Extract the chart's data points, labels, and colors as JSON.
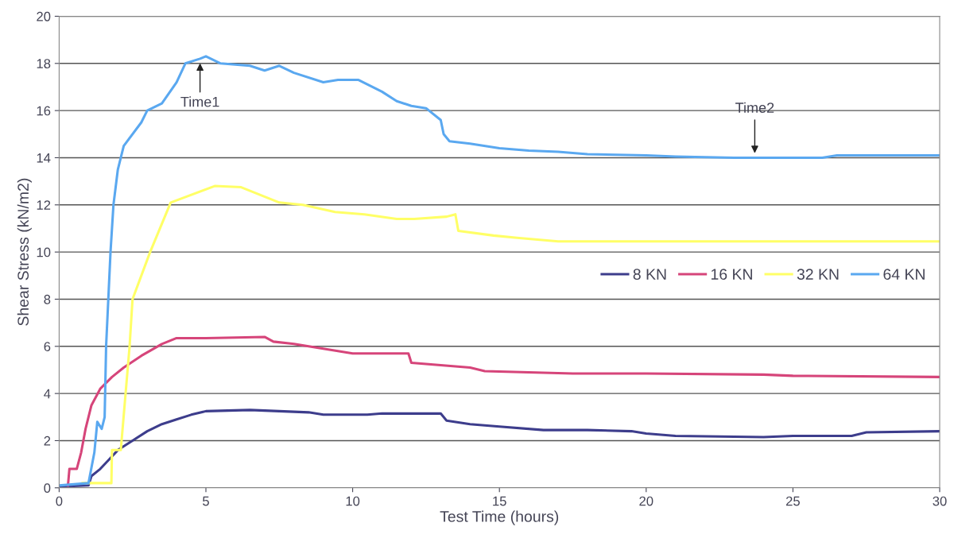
{
  "chart_data": {
    "type": "line",
    "xlabel": "Test Time (hours)",
    "ylabel": "Shear Stress (kN/m2)",
    "xlim": [
      0,
      30
    ],
    "xticks": [
      0,
      5,
      10,
      15,
      20,
      25,
      30
    ],
    "ylim": [
      0,
      20
    ],
    "yticks": [
      0,
      2,
      4,
      6,
      8,
      10,
      12,
      14,
      16,
      18,
      20
    ],
    "grid": "y",
    "legend": "right",
    "marker": "none",
    "line_style": "solid",
    "annotations": [
      {
        "text": "Time1",
        "x": 4.8,
        "y": 18.1
      },
      {
        "text": "Time2",
        "x": 23.7,
        "y": 14.1
      }
    ],
    "series": [
      {
        "name": "8 KN",
        "color": "#3d3d8c",
        "x": [
          0,
          1.0,
          1.1,
          1.4,
          1.7,
          2.0,
          2.5,
          3.0,
          3.5,
          4,
          4.5,
          5,
          6.5,
          7.5,
          8.5,
          9,
          10.5,
          11,
          13.0,
          13.2,
          14,
          15,
          16.5,
          18,
          19.5,
          20,
          21,
          24,
          25,
          27,
          27.5,
          30
        ],
        "values": [
          0.05,
          0.1,
          0.5,
          0.8,
          1.2,
          1.6,
          2.0,
          2.4,
          2.7,
          2.9,
          3.1,
          3.25,
          3.3,
          3.25,
          3.2,
          3.1,
          3.1,
          3.15,
          3.15,
          2.85,
          2.7,
          2.6,
          2.45,
          2.45,
          2.4,
          2.3,
          2.2,
          2.15,
          2.2,
          2.2,
          2.35,
          2.4
        ]
      },
      {
        "name": "16 KN",
        "color": "#d6457a",
        "x": [
          0.3,
          0.35,
          0.6,
          0.75,
          0.9,
          1.1,
          1.4,
          1.8,
          2.2,
          2.8,
          3.5,
          4.0,
          5,
          7,
          7.3,
          8,
          9,
          10,
          11,
          11.9,
          12,
          13,
          14,
          14.5,
          16,
          17.5,
          20,
          24,
          25,
          30
        ],
        "values": [
          0.1,
          0.8,
          0.8,
          1.5,
          2.5,
          3.5,
          4.2,
          4.7,
          5.1,
          5.6,
          6.1,
          6.35,
          6.35,
          6.4,
          6.2,
          6.1,
          5.9,
          5.7,
          5.7,
          5.7,
          5.3,
          5.2,
          5.1,
          4.95,
          4.9,
          4.85,
          4.85,
          4.8,
          4.75,
          4.7
        ]
      },
      {
        "name": "32 KN",
        "color": "#ffff66",
        "x": [
          0.8,
          1.1,
          1.78,
          1.8,
          2.1,
          2.4,
          2.5,
          3.1,
          3.8,
          5.3,
          6.2,
          7.5,
          8.3,
          9.4,
          10.4,
          11.5,
          12.1,
          13.2,
          13.5,
          13.6,
          14.8,
          15.6,
          17,
          30
        ],
        "values": [
          0.2,
          0.2,
          0.2,
          1.6,
          1.6,
          6.0,
          8.0,
          10.0,
          12.1,
          12.8,
          12.75,
          12.1,
          12.0,
          11.7,
          11.6,
          11.4,
          11.4,
          11.5,
          11.6,
          10.9,
          10.7,
          10.6,
          10.45,
          10.45
        ]
      },
      {
        "name": "64 KN",
        "color": "#5aa8f0",
        "x": [
          0,
          1.0,
          1.2,
          1.3,
          1.45,
          1.55,
          1.6,
          1.75,
          1.85,
          2.0,
          2.2,
          2.8,
          3.0,
          3.5,
          4.0,
          4.3,
          4.8,
          5.0,
          5.5,
          6.5,
          7,
          7.5,
          8,
          9,
          9.5,
          10.2,
          11,
          11.5,
          12,
          12.5,
          13,
          13.1,
          13.3,
          14,
          15,
          16,
          17,
          18,
          20,
          21,
          23,
          26,
          26.5,
          30
        ],
        "values": [
          0.1,
          0.2,
          1.5,
          2.8,
          2.5,
          3.0,
          6,
          10,
          12,
          13.5,
          14.5,
          15.5,
          16.0,
          16.3,
          17.2,
          18.0,
          18.2,
          18.3,
          18.0,
          17.9,
          17.7,
          17.9,
          17.6,
          17.2,
          17.3,
          17.3,
          16.8,
          16.4,
          16.2,
          16.1,
          15.6,
          15.0,
          14.7,
          14.6,
          14.4,
          14.3,
          14.25,
          14.15,
          14.1,
          14.05,
          14.0,
          14.0,
          14.1,
          14.1
        ]
      }
    ]
  }
}
